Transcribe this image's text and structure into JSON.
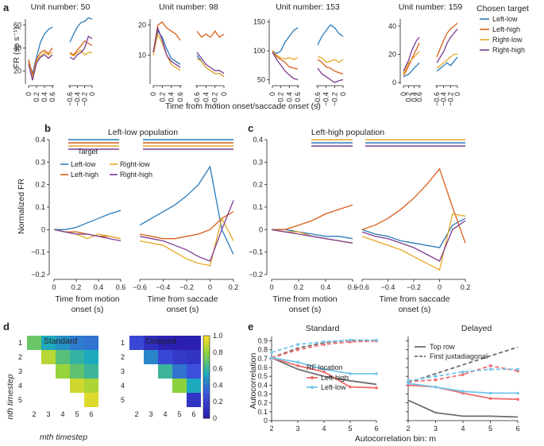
{
  "colors": {
    "left_low": "#2a7bb9",
    "left_high": "#d95f1a",
    "right_low": "#e5a825",
    "right_high": "#7a3d91",
    "ll_light": "#73c6ea",
    "lh_light": "#ef6b6b",
    "gray": "#6d6e71"
  },
  "panels": {
    "a": "a",
    "b": "b",
    "c": "c",
    "d": "d",
    "e": "e"
  },
  "panel_a": {
    "units": [
      "Unit number: 50",
      "Unit number: 98",
      "Unit number: 153",
      "Unit number: 159"
    ],
    "ylabel": "FR (sp s⁻¹)",
    "xlabel": "Time from motion onset/saccade onset (s)",
    "motion_ticks": [
      "0",
      "0.2",
      "0.4",
      "0.6"
    ],
    "sacc_ticks": [
      "−0.6",
      "−0.4",
      "−0.2",
      "0"
    ],
    "yticks": [
      [
        "20",
        "40",
        "60"
      ],
      [
        "10",
        "20"
      ],
      [
        "50",
        "100",
        "150"
      ],
      [
        "0",
        "20",
        "40"
      ]
    ],
    "legend_title": "Chosen target",
    "legend": [
      "Left-low",
      "Left-high",
      "Right-low",
      "Right-high"
    ]
  },
  "panel_b": {
    "title": "Left-low population",
    "ylabel": "Normalized FR",
    "yticks": [
      "0.4",
      "0.3",
      "0.2",
      "0.1",
      "0",
      "−0.1",
      "−0.2"
    ],
    "motion_ticks": [
      "0",
      "0.2",
      "0.4",
      "0.6"
    ],
    "sacc_ticks": [
      "−0.6",
      "−0.4",
      "−0.2",
      "0",
      "0.2"
    ],
    "xlabel_motion": [
      "Time from motion",
      "onset (s)"
    ],
    "xlabel_sacc": [
      "Time from saccade",
      "onset (s)"
    ],
    "legend_title": "Target",
    "legend": [
      "Left-low",
      "Right-low",
      "Left-high",
      "Right-high"
    ]
  },
  "panel_c": {
    "title": "Left-high population",
    "yticks": [
      "0.4",
      "0.3",
      "0.2",
      "0.1",
      "0",
      "−0.1",
      "−0.2"
    ],
    "motion_ticks": [
      "0",
      "0.2",
      "0.4",
      "0.6"
    ],
    "sacc_ticks": [
      "−0.6",
      "−0.4",
      "−0.2",
      "0",
      "0.2"
    ],
    "xlabel_motion": [
      "Time from motion",
      "onset (s)"
    ],
    "xlabel_sacc": [
      "Time from saccade",
      "onset (s)"
    ]
  },
  "panel_d": {
    "titles": [
      "Standard",
      "Delayed"
    ],
    "ylabel": "nth timestep",
    "xlabel": "mth timestep",
    "yticks": [
      "1",
      "2",
      "3",
      "4",
      "5"
    ],
    "xticks": [
      "2",
      "3",
      "4",
      "5",
      "6"
    ],
    "colorbar_ticks": [
      "1.0",
      "0.8",
      "0.6",
      "0.4",
      "0.2",
      "0"
    ]
  },
  "panel_e": {
    "titles": [
      "Standard",
      "Delayed"
    ],
    "ylabel": "Autocorrelation",
    "xlabel": "Autocorrelation bin: m",
    "yticks": [
      "0.9",
      "0.8",
      "0.7",
      "0.6",
      "0.5",
      "0.4",
      "0.3",
      "0.2",
      "0.1",
      "0"
    ],
    "xticks": [
      "2",
      "3",
      "4",
      "5",
      "6"
    ],
    "legend_top": [
      "Top row",
      "First juxtadiagonal"
    ],
    "legend_title": "RF location",
    "legend": [
      "Left-high",
      "Left-low"
    ]
  },
  "chart_data": [
    {
      "type": "line",
      "title": "Unit number: 50",
      "x_motion": [
        0,
        0.1,
        0.2,
        0.3,
        0.4,
        0.5,
        0.6
      ],
      "x_saccade": [
        -0.6,
        -0.5,
        -0.4,
        -0.3,
        -0.2,
        -0.1,
        0
      ],
      "ylim": [
        10,
        65
      ],
      "series": [
        {
          "name": "Left-low",
          "motion": [
            28,
            18,
            32,
            45,
            52,
            56,
            58
          ],
          "saccade": [
            45,
            52,
            58,
            62,
            63,
            66,
            65
          ]
        },
        {
          "name": "Left-high",
          "motion": [
            30,
            16,
            30,
            36,
            38,
            35,
            40
          ],
          "saccade": [
            36,
            34,
            38,
            42,
            46,
            44,
            42
          ]
        },
        {
          "name": "Right-low",
          "motion": [
            27,
            14,
            28,
            33,
            36,
            34,
            36
          ],
          "saccade": [
            35,
            33,
            36,
            38,
            34,
            36,
            36
          ]
        },
        {
          "name": "Right-high",
          "motion": [
            26,
            12,
            27,
            32,
            34,
            31,
            34
          ],
          "saccade": [
            32,
            30,
            34,
            36,
            40,
            50,
            48
          ]
        }
      ]
    },
    {
      "type": "line",
      "title": "Unit number: 98",
      "x_motion": [
        0,
        0.1,
        0.2,
        0.3,
        0.4,
        0.5,
        0.6
      ],
      "x_saccade": [
        -0.6,
        -0.5,
        -0.4,
        -0.3,
        -0.2,
        -0.1,
        0
      ],
      "ylim": [
        1,
        22
      ],
      "series": [
        {
          "name": "Left-low",
          "motion": [
            11,
            18,
            16,
            12,
            9,
            8,
            7
          ],
          "saccade": [
            10,
            8,
            6,
            5,
            4,
            4,
            3
          ]
        },
        {
          "name": "Left-high",
          "motion": [
            11,
            20,
            21,
            19,
            18,
            17,
            15
          ],
          "saccade": [
            18,
            16,
            17,
            16,
            18,
            16,
            17
          ]
        },
        {
          "name": "Right-low",
          "motion": [
            10,
            17,
            14,
            10,
            7,
            6,
            5
          ],
          "saccade": [
            9,
            8,
            6,
            5,
            4,
            4,
            3
          ]
        },
        {
          "name": "Right-high",
          "motion": [
            11,
            19,
            15,
            10,
            8,
            7,
            6
          ],
          "saccade": [
            11,
            9,
            7,
            6,
            5,
            5,
            4
          ]
        }
      ]
    },
    {
      "type": "line",
      "title": "Unit number: 153",
      "x_motion": [
        0,
        0.1,
        0.2,
        0.3,
        0.4,
        0.5,
        0.6
      ],
      "x_saccade": [
        -0.6,
        -0.5,
        -0.4,
        -0.3,
        -0.2,
        -0.1,
        0
      ],
      "ylim": [
        45,
        155
      ],
      "series": [
        {
          "name": "Left-low",
          "motion": [
            100,
            95,
            100,
            115,
            125,
            135,
            140
          ],
          "saccade": [
            110,
            125,
            135,
            145,
            140,
            130,
            125
          ]
        },
        {
          "name": "Left-high",
          "motion": [
            98,
            90,
            85,
            80,
            72,
            70,
            68
          ],
          "saccade": [
            85,
            80,
            72,
            70,
            65,
            62,
            60
          ]
        },
        {
          "name": "Right-low",
          "motion": [
            100,
            92,
            88,
            86,
            88,
            85,
            88
          ],
          "saccade": [
            90,
            88,
            80,
            82,
            85,
            80,
            85
          ]
        },
        {
          "name": "Right-high",
          "motion": [
            98,
            85,
            75,
            65,
            58,
            52,
            50
          ],
          "saccade": [
            70,
            60,
            55,
            50,
            45,
            48,
            50
          ]
        }
      ]
    },
    {
      "type": "line",
      "title": "Unit number: 159",
      "x_motion": [
        0,
        0.1,
        0.2,
        0.3,
        0.4,
        0.5,
        0.6
      ],
      "x_saccade": [
        -0.6,
        -0.5,
        -0.4,
        -0.3,
        -0.2,
        -0.1,
        0
      ],
      "ylim": [
        0,
        45
      ],
      "series": [
        {
          "name": "Left-low",
          "motion": [
            4,
            5,
            6,
            8,
            10,
            12,
            14
          ],
          "saccade": [
            8,
            10,
            12,
            14,
            12,
            15,
            18
          ]
        },
        {
          "name": "Left-high",
          "motion": [
            5,
            8,
            12,
            16,
            20,
            24,
            28
          ],
          "saccade": [
            18,
            24,
            30,
            35,
            38,
            40,
            42
          ]
        },
        {
          "name": "Right-low",
          "motion": [
            6,
            10,
            14,
            16,
            18,
            20,
            22
          ],
          "saccade": [
            10,
            12,
            14,
            16,
            18,
            20,
            20
          ]
        },
        {
          "name": "Right-high",
          "motion": [
            8,
            12,
            16,
            22,
            26,
            30,
            32
          ],
          "saccade": [
            14,
            18,
            22,
            28,
            32,
            35,
            38
          ]
        }
      ]
    },
    {
      "type": "line",
      "title": "Left-low population",
      "x_motion": [
        0,
        0.1,
        0.2,
        0.3,
        0.4,
        0.5,
        0.6
      ],
      "x_saccade": [
        -0.6,
        -0.5,
        -0.4,
        -0.3,
        -0.2,
        -0.1,
        0,
        0.1,
        0.2
      ],
      "ylim": [
        -0.2,
        0.4
      ],
      "series": [
        {
          "name": "Left-low",
          "motion": [
            0,
            0.0,
            0.01,
            0.03,
            0.05,
            0.07,
            0.085
          ],
          "saccade": [
            0.02,
            0.05,
            0.08,
            0.11,
            0.15,
            0.2,
            0.28,
            0.0,
            -0.11
          ]
        },
        {
          "name": "Left-high",
          "motion": [
            0,
            -0.01,
            -0.01,
            -0.02,
            -0.03,
            -0.03,
            -0.04
          ],
          "saccade": [
            -0.02,
            -0.03,
            -0.04,
            -0.04,
            -0.03,
            -0.02,
            0.0,
            0.05,
            0.08
          ]
        },
        {
          "name": "Right-low",
          "motion": [
            0,
            -0.01,
            -0.02,
            -0.04,
            -0.02,
            -0.03,
            -0.04
          ],
          "saccade": [
            -0.05,
            -0.06,
            -0.07,
            -0.1,
            -0.13,
            -0.15,
            -0.16,
            0.05,
            -0.05
          ]
        },
        {
          "name": "Right-high",
          "motion": [
            0,
            -0.01,
            -0.02,
            -0.02,
            -0.03,
            -0.04,
            -0.05
          ],
          "saccade": [
            -0.03,
            -0.04,
            -0.05,
            -0.07,
            -0.09,
            -0.12,
            -0.14,
            0.0,
            0.13
          ]
        }
      ]
    },
    {
      "type": "line",
      "title": "Left-high population",
      "x_motion": [
        0,
        0.1,
        0.2,
        0.3,
        0.4,
        0.5,
        0.6
      ],
      "x_saccade": [
        -0.6,
        -0.5,
        -0.4,
        -0.3,
        -0.2,
        -0.1,
        0,
        0.1,
        0.2
      ],
      "ylim": [
        -0.2,
        0.4
      ],
      "series": [
        {
          "name": "Left-low",
          "motion": [
            0,
            0.0,
            -0.01,
            -0.02,
            -0.03,
            -0.03,
            -0.04
          ],
          "saccade": [
            0.0,
            -0.02,
            -0.03,
            -0.05,
            -0.06,
            -0.07,
            -0.08,
            0.02,
            0.05
          ]
        },
        {
          "name": "Left-high",
          "motion": [
            0,
            0.0,
            0.02,
            0.04,
            0.07,
            0.09,
            0.11
          ],
          "saccade": [
            0.0,
            0.02,
            0.05,
            0.09,
            0.14,
            0.2,
            0.27,
            0.1,
            -0.06
          ]
        },
        {
          "name": "Right-low",
          "motion": [
            0,
            -0.01,
            -0.01,
            -0.03,
            -0.04,
            -0.05,
            -0.06
          ],
          "saccade": [
            -0.03,
            -0.05,
            -0.07,
            -0.09,
            -0.12,
            -0.15,
            -0.18,
            0.07,
            0.06
          ]
        },
        {
          "name": "Right-high",
          "motion": [
            0,
            -0.01,
            -0.02,
            -0.03,
            -0.04,
            -0.05,
            -0.06
          ],
          "saccade": [
            -0.01,
            -0.03,
            -0.04,
            -0.06,
            -0.08,
            -0.11,
            -0.14,
            0.0,
            0.04
          ]
        }
      ]
    },
    {
      "type": "heatmap",
      "title": "Standard",
      "rows": [
        "1",
        "2",
        "3",
        "4",
        "5"
      ],
      "cols": [
        "2",
        "3",
        "4",
        "5",
        "6"
      ],
      "values": [
        [
          0.72,
          0.55,
          0.48,
          0.42,
          0.4
        ],
        [
          null,
          0.88,
          0.68,
          0.6,
          0.55
        ],
        [
          null,
          null,
          0.82,
          0.7,
          0.62
        ],
        [
          null,
          null,
          null,
          0.92,
          0.86
        ],
        [
          null,
          null,
          null,
          null,
          0.95
        ]
      ],
      "zlim": [
        0,
        1
      ]
    },
    {
      "type": "heatmap",
      "title": "Delayed",
      "rows": [
        "1",
        "2",
        "3",
        "4",
        "5"
      ],
      "cols": [
        "2",
        "3",
        "4",
        "5",
        "6"
      ],
      "values": [
        [
          0.25,
          0.12,
          0.05,
          0.04,
          0.04
        ],
        [
          null,
          0.45,
          0.25,
          0.18,
          0.15
        ],
        [
          null,
          null,
          0.62,
          0.4,
          0.3
        ],
        [
          null,
          null,
          null,
          0.8,
          0.55
        ],
        [
          null,
          null,
          null,
          null,
          0.15
        ]
      ],
      "zlim": [
        0,
        1
      ]
    },
    {
      "type": "line",
      "title": "Standard",
      "x": [
        2,
        3,
        4,
        5,
        6
      ],
      "ylim": [
        0,
        0.95
      ],
      "series": [
        {
          "name": "Top row",
          "style": "solid",
          "color": "gray",
          "values": [
            0.71,
            0.58,
            0.5,
            0.45,
            0.41
          ]
        },
        {
          "name": "First juxtadiagonal",
          "style": "dashed",
          "color": "gray",
          "values": [
            0.71,
            0.82,
            0.88,
            0.91,
            0.9
          ]
        },
        {
          "name": "Left-high",
          "style": "solid",
          "color": "lh_light",
          "values": [
            0.71,
            0.62,
            0.55,
            0.38,
            0.37
          ]
        },
        {
          "name": "Left-high",
          "style": "dashed",
          "color": "lh_light",
          "values": [
            0.71,
            0.8,
            0.86,
            0.89,
            0.9
          ]
        },
        {
          "name": "Left-low",
          "style": "solid",
          "color": "ll_light",
          "values": [
            0.71,
            0.66,
            0.58,
            0.53,
            0.53
          ]
        },
        {
          "name": "Left-low",
          "style": "dashed",
          "color": "ll_light",
          "values": [
            0.77,
            0.86,
            0.89,
            0.91,
            0.91
          ]
        }
      ]
    },
    {
      "type": "line",
      "title": "Delayed",
      "x": [
        2,
        3,
        4,
        5,
        6
      ],
      "ylim": [
        0,
        0.95
      ],
      "series": [
        {
          "name": "Top row",
          "style": "solid",
          "color": "gray",
          "values": [
            0.23,
            0.09,
            0.05,
            0.05,
            0.04
          ]
        },
        {
          "name": "First juxtadiagonal",
          "style": "dashed",
          "color": "gray",
          "values": [
            0.43,
            0.53,
            0.63,
            0.73,
            0.83
          ]
        },
        {
          "name": "Left-high",
          "style": "solid",
          "color": "lh_light",
          "values": [
            0.4,
            0.38,
            0.31,
            0.25,
            0.24
          ]
        },
        {
          "name": "Left-high",
          "style": "dashed",
          "color": "lh_light",
          "values": [
            0.44,
            0.46,
            0.52,
            0.62,
            0.56
          ]
        },
        {
          "name": "Left-low",
          "style": "solid",
          "color": "ll_light",
          "values": [
            0.42,
            0.38,
            0.33,
            0.31,
            0.31
          ]
        },
        {
          "name": "Left-low",
          "style": "dashed",
          "color": "ll_light",
          "values": [
            0.45,
            0.5,
            0.55,
            0.58,
            0.58
          ]
        }
      ]
    }
  ]
}
